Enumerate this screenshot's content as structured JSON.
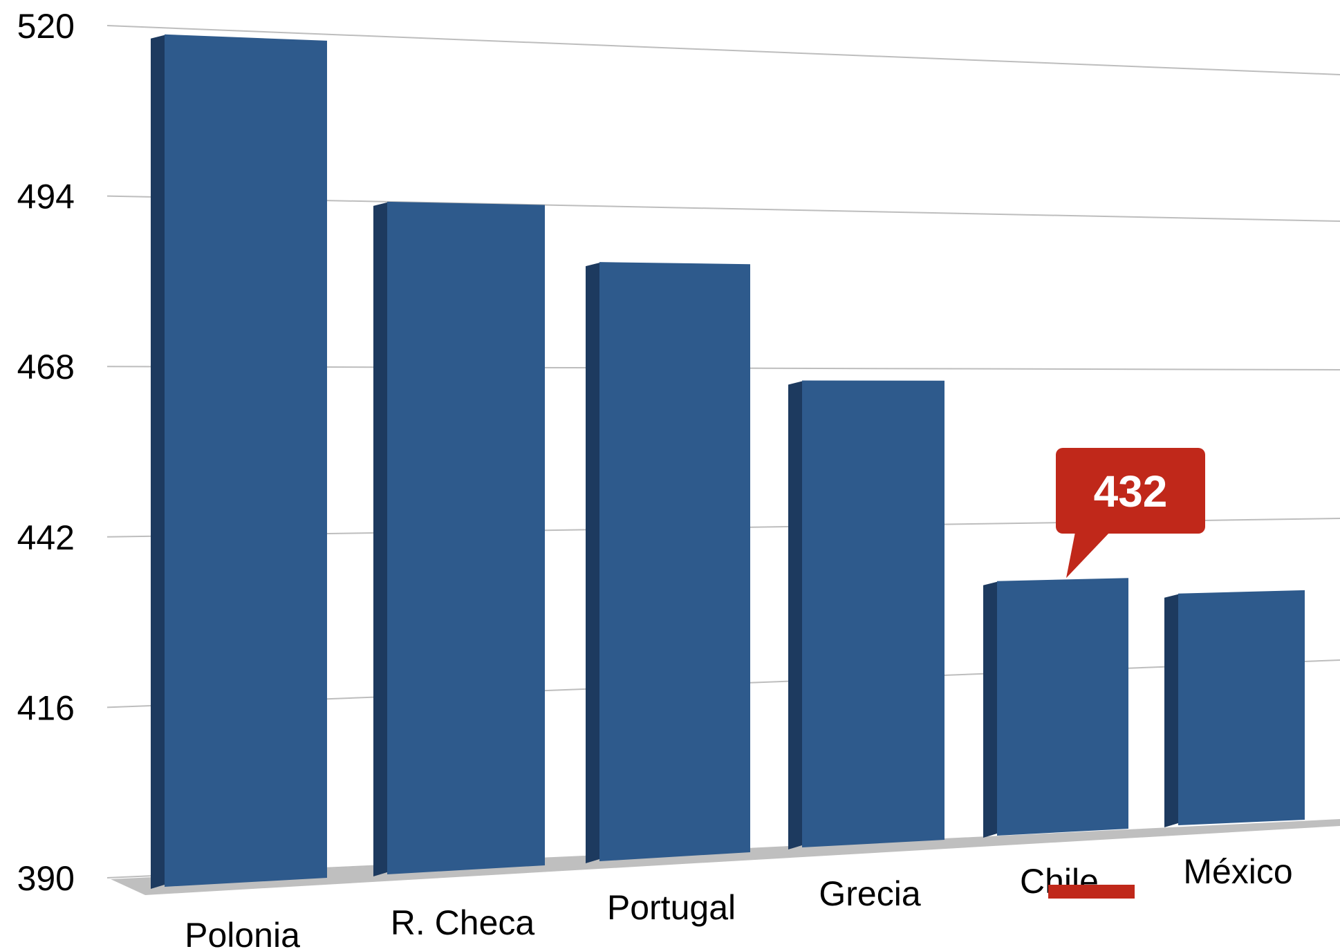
{
  "chart_data": {
    "type": "bar",
    "categories": [
      "Polonia",
      "R. Checa",
      "Portugal",
      "Grecia",
      "Chile",
      "México"
    ],
    "values": [
      519,
      494,
      485,
      466,
      432,
      429
    ],
    "yticks": [
      390,
      416,
      442,
      468,
      494,
      520
    ],
    "ylim": [
      390,
      520
    ],
    "grid": true,
    "highlight": {
      "category": "Chile",
      "label": "432"
    },
    "colors": {
      "bar_front": "#2E5A8C",
      "bar_side": "#1D3A5F",
      "floor": "#BFBFBF",
      "grid": "#BDBDBD",
      "callout": "#C0281A"
    }
  }
}
